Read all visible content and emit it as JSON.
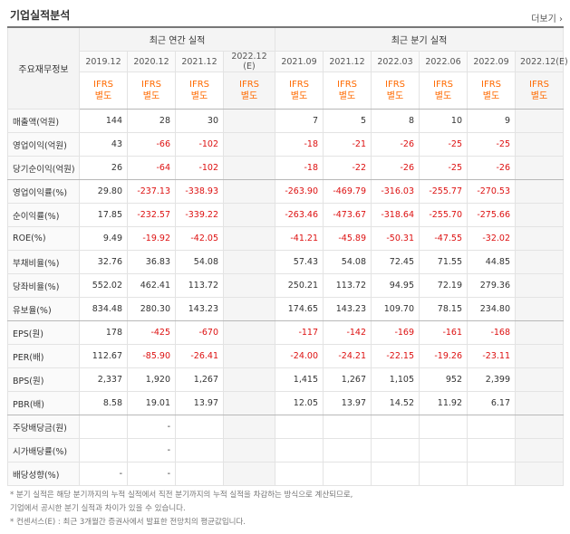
{
  "section_title": "기업실적분석",
  "more_label": "더보기",
  "header": {
    "row_label": "주요재무정보",
    "annual_group": "최근 연간 실적",
    "quarter_group": "최근 분기 실적",
    "periods": [
      "2019.12",
      "2020.12",
      "2021.12",
      "2022.12\n(E)",
      "2021.09",
      "2021.12",
      "2022.03",
      "2022.06",
      "2022.09",
      "2022.12(E)"
    ],
    "ifrs": "IFRS\n별도"
  },
  "rows": [
    {
      "label": "매출액(억원)",
      "values": [
        "144",
        "28",
        "30",
        "",
        "7",
        "5",
        "8",
        "10",
        "9",
        ""
      ]
    },
    {
      "label": "영업이익(억원)",
      "values": [
        "43",
        "-66",
        "-102",
        "",
        "-18",
        "-21",
        "-26",
        "-25",
        "-25",
        ""
      ]
    },
    {
      "label": "당기순이익(억원)",
      "values": [
        "26",
        "-64",
        "-102",
        "",
        "-18",
        "-22",
        "-26",
        "-25",
        "-26",
        ""
      ]
    },
    {
      "label": "영업이익률(%)",
      "values": [
        "29.80",
        "-237.13",
        "-338.93",
        "",
        "-263.90",
        "-469.79",
        "-316.03",
        "-255.77",
        "-270.53",
        ""
      ]
    },
    {
      "label": "순이익률(%)",
      "values": [
        "17.85",
        "-232.57",
        "-339.22",
        "",
        "-263.46",
        "-473.67",
        "-318.64",
        "-255.70",
        "-275.66",
        ""
      ]
    },
    {
      "label": "ROE(%)",
      "values": [
        "9.49",
        "-19.92",
        "-42.05",
        "",
        "-41.21",
        "-45.89",
        "-50.31",
        "-47.55",
        "-32.02",
        ""
      ]
    },
    {
      "label": "부채비율(%)",
      "values": [
        "32.76",
        "36.83",
        "54.08",
        "",
        "57.43",
        "54.08",
        "72.45",
        "71.55",
        "44.85",
        ""
      ]
    },
    {
      "label": "당좌비율(%)",
      "values": [
        "552.02",
        "462.41",
        "113.72",
        "",
        "250.21",
        "113.72",
        "94.95",
        "72.19",
        "279.36",
        ""
      ]
    },
    {
      "label": "유보율(%)",
      "values": [
        "834.48",
        "280.30",
        "143.23",
        "",
        "174.65",
        "143.23",
        "109.70",
        "78.15",
        "234.80",
        ""
      ]
    },
    {
      "label": "EPS(원)",
      "values": [
        "178",
        "-425",
        "-670",
        "",
        "-117",
        "-142",
        "-169",
        "-161",
        "-168",
        ""
      ]
    },
    {
      "label": "PER(배)",
      "values": [
        "112.67",
        "-85.90",
        "-26.41",
        "",
        "-24.00",
        "-24.21",
        "-22.15",
        "-19.26",
        "-23.11",
        ""
      ]
    },
    {
      "label": "BPS(원)",
      "values": [
        "2,337",
        "1,920",
        "1,267",
        "",
        "1,415",
        "1,267",
        "1,105",
        "952",
        "2,399",
        ""
      ]
    },
    {
      "label": "PBR(배)",
      "values": [
        "8.58",
        "19.01",
        "13.97",
        "",
        "12.05",
        "13.97",
        "14.52",
        "11.92",
        "6.17",
        ""
      ]
    },
    {
      "label": "주당배당금(원)",
      "values": [
        "",
        "-",
        "",
        "",
        "",
        "",
        "",
        "",
        "",
        ""
      ]
    },
    {
      "label": "시가배당률(%)",
      "values": [
        "",
        "-",
        "",
        "",
        "",
        "",
        "",
        "",
        "",
        ""
      ]
    },
    {
      "label": "배당성향(%)",
      "values": [
        "-",
        "-",
        "",
        "",
        "",
        "",
        "",
        "",
        "",
        ""
      ]
    }
  ],
  "notes": [
    "* 분기 실적은 해당 분기까지의 누적 실적에서 직전 분기까지의 누적 실적을 차감하는 방식으로 계산되므로,",
    "  기업에서 공시한 분기 실적과 차이가 있을 수 있습니다.",
    "* 컨센서스(E) : 최근 3개월간 증권사에서 발표한 전망치의 평균값입니다."
  ]
}
